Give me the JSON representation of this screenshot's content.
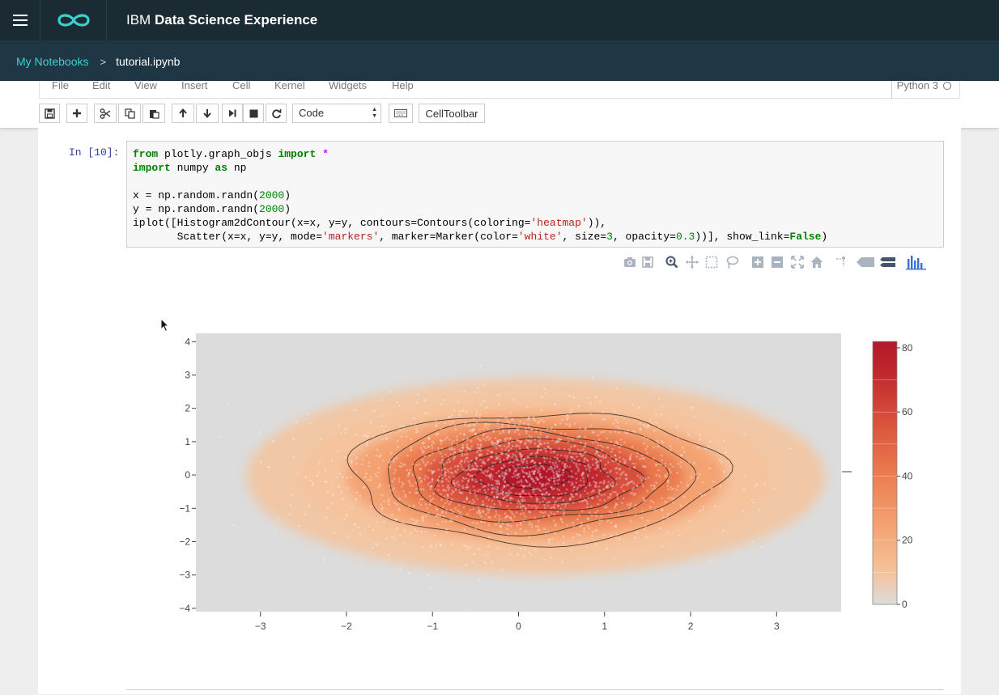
{
  "app": {
    "brand_prefix": "IBM",
    "brand_name": "Data Science Experience"
  },
  "breadcrumb": {
    "parent": "My Notebooks",
    "separator": ">",
    "current": "tutorial.ipynb"
  },
  "menu": {
    "items": [
      "File",
      "Edit",
      "View",
      "Insert",
      "Cell",
      "Kernel",
      "Widgets",
      "Help"
    ],
    "kernel_name": "Python 3"
  },
  "toolbar": {
    "cell_type": "Code",
    "celltoolbar_label": "CellToolbar",
    "icons": [
      "save-icon",
      "plus-icon",
      "cut-icon",
      "copy-icon",
      "paste-icon",
      "arrow-up-icon",
      "arrow-down-icon",
      "step-forward-icon",
      "stop-icon",
      "refresh-icon",
      "keyboard-icon"
    ]
  },
  "cell": {
    "prompt": "In [10]:",
    "lines": [
      [
        {
          "t": "kw",
          "s": "from"
        },
        {
          "t": "",
          "s": " plotly.graph_objs "
        },
        {
          "t": "kw",
          "s": "import"
        },
        {
          "t": "",
          "s": " "
        },
        {
          "t": "op",
          "s": "*"
        }
      ],
      [
        {
          "t": "kw",
          "s": "import"
        },
        {
          "t": "",
          "s": " numpy "
        },
        {
          "t": "kw",
          "s": "as"
        },
        {
          "t": "",
          "s": " np"
        }
      ],
      [
        {
          "t": "",
          "s": ""
        }
      ],
      [
        {
          "t": "",
          "s": "x = np.random.randn("
        },
        {
          "t": "num",
          "s": "2000"
        },
        {
          "t": "",
          "s": ")"
        }
      ],
      [
        {
          "t": "",
          "s": "y = np.random.randn("
        },
        {
          "t": "num",
          "s": "2000"
        },
        {
          "t": "",
          "s": ")"
        }
      ],
      [
        {
          "t": "",
          "s": "iplot([Histogram2dContour(x=x, y=y, contours=Contours(coloring="
        },
        {
          "t": "str",
          "s": "'heatmap'"
        },
        {
          "t": "",
          "s": ")),"
        }
      ],
      [
        {
          "t": "",
          "s": "       Scatter(x=x, y=y, mode="
        },
        {
          "t": "str",
          "s": "'markers'"
        },
        {
          "t": "",
          "s": ", marker=Marker(color="
        },
        {
          "t": "str",
          "s": "'white'"
        },
        {
          "t": "",
          "s": ", size="
        },
        {
          "t": "num",
          "s": "3"
        },
        {
          "t": "",
          "s": ", opacity="
        },
        {
          "t": "num",
          "s": "0.3"
        },
        {
          "t": "",
          "s": "))], show_link="
        },
        {
          "t": "kw",
          "s": "False"
        },
        {
          "t": "",
          "s": ")"
        }
      ]
    ]
  },
  "modebar": {
    "icons": [
      "camera-icon",
      "save-plot-icon",
      "zoom-icon",
      "pan-icon",
      "box-select-icon",
      "lasso-select-icon",
      "zoom-in-icon",
      "zoom-out-icon",
      "autoscale-icon",
      "reset-axes-icon",
      "spike-lines-icon",
      "hover-closest-icon",
      "hover-compare-icon",
      "plotly-logo-icon"
    ]
  },
  "colors": {
    "topbar": "#1b2b34",
    "breadbar": "#1f3645",
    "accent": "#3ccfcf",
    "plot_bg": "#dcdcdc",
    "colorscale": [
      "#dcdcdc",
      "#f5c39c",
      "#f4a272",
      "#ea7b4f",
      "#d9503c",
      "#c0282e",
      "#b2182b"
    ]
  },
  "chart_data": {
    "type": "heatmap",
    "subtype": "histogram2dcontour+scatter",
    "title": "",
    "xlabel": "",
    "ylabel": "",
    "xlim": [
      -3.75,
      3.75
    ],
    "ylim": [
      -4.1,
      4.25
    ],
    "x_ticks": [
      -3,
      -2,
      -1,
      0,
      1,
      2,
      3
    ],
    "y_ticks": [
      -4,
      -3,
      -2,
      -1,
      0,
      1,
      2,
      3,
      4
    ],
    "tick_labels": {
      "x": [
        "−3",
        "−2",
        "−1",
        "0",
        "1",
        "2",
        "3"
      ],
      "y": [
        "−4",
        "−3",
        "−2",
        "−1",
        "0",
        "1",
        "2",
        "3",
        "4"
      ]
    },
    "grid": false,
    "density": {
      "center": [
        0.2,
        -0.05
      ],
      "sx": 1.0,
      "sy": 0.95,
      "peak": 80
    },
    "contour_levels": [
      10,
      20,
      30,
      40,
      50,
      60,
      70
    ],
    "colorbar": {
      "min": 0,
      "max": 80,
      "ticks": [
        0,
        20,
        40,
        60,
        80
      ],
      "tick_labels": [
        "0",
        "20",
        "40",
        "60",
        "80"
      ]
    },
    "scatter": {
      "n": 2000,
      "distribution": "standard normal",
      "color": "white",
      "size": 3,
      "opacity": 0.3
    }
  }
}
